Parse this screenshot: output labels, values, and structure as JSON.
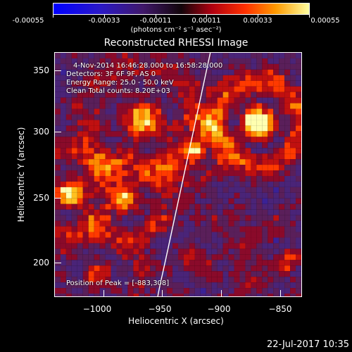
{
  "colorbar": {
    "ticks": [
      "-0.00055",
      "-0.00033",
      "-0.00011",
      "0.00011",
      "0.00033",
      "0.00055"
    ],
    "units": "(photons cm⁻² s⁻¹ asec⁻²)"
  },
  "title": "Reconstructed RHESSI Image",
  "info": {
    "time": "4-Nov-2014 16:46:28.000 to 16:58:28.000",
    "detectors": "Detectors: 3F 6F 9F, AS 0",
    "energy": "Energy Range: 25.0 - 50.0 keV",
    "method": "Clean     Total counts: 8.20E+03",
    "peak": "Position of Peak = [-883,308]"
  },
  "axes": {
    "xlabel": "Heliocentric X (arcsec)",
    "ylabel": "Heliocentric Y (arcsec)",
    "xticks": [
      "−1000",
      "−950",
      "−900",
      "−850"
    ],
    "yticks": [
      "350",
      "300",
      "250",
      "200"
    ]
  },
  "footer": "22-Jul-2017 10:35"
}
